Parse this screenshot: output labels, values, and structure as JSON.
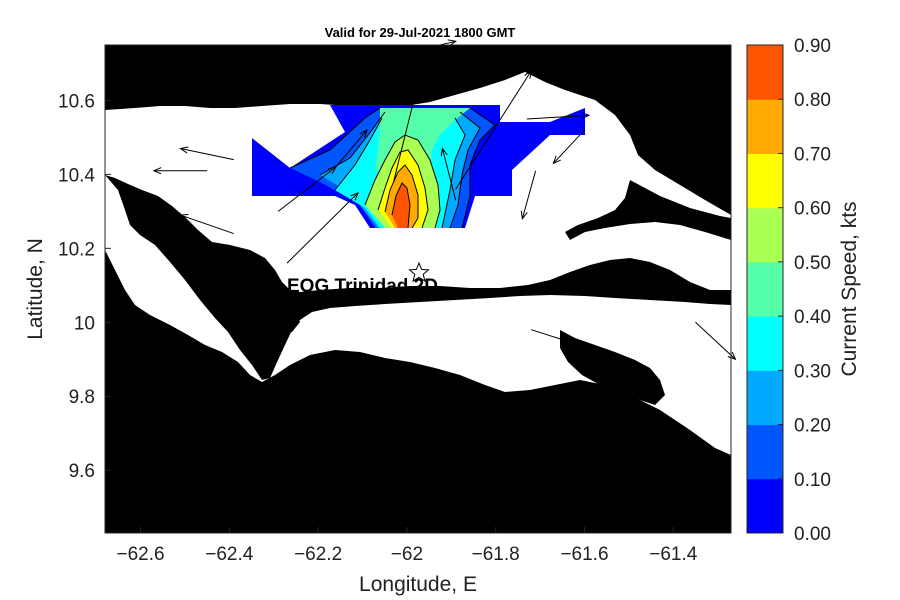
{
  "title": "Valid for 29-Jul-2021 1800 GMT",
  "site_label": "EOG Trinidad 2D",
  "x_axis": {
    "label": "Longitude, E",
    "ticks": [
      "−62.6",
      "−62.4",
      "−62.2",
      "−62",
      "−61.8",
      "−61.6",
      "−61.4"
    ],
    "tick_values": [
      -62.6,
      -62.4,
      -62.2,
      -62.0,
      -61.8,
      -61.6,
      -61.4
    ]
  },
  "y_axis": {
    "label": "Latitude, N",
    "ticks": [
      "10.6",
      "10.4",
      "10.2",
      "10",
      "9.8",
      "9.6"
    ],
    "tick_values": [
      10.6,
      10.4,
      10.2,
      10.0,
      9.8,
      9.6
    ]
  },
  "colorbar": {
    "label": "Current Speed, kts",
    "ticks": [
      "0.90",
      "0.80",
      "0.70",
      "0.60",
      "0.50",
      "0.40",
      "0.30",
      "0.20",
      "0.10",
      "0.00"
    ],
    "colors": [
      "#0000ff",
      "#0055ff",
      "#00aaff",
      "#00ffff",
      "#55ffaa",
      "#aaff55",
      "#ffff00",
      "#ffaa00",
      "#ff5500"
    ]
  },
  "colors": {
    "land": "#000000",
    "sea": "#ffffff",
    "arrow": "#000000"
  },
  "chart_data": {
    "type": "contour",
    "title": "Valid for 29-Jul-2021 1800 GMT",
    "xlabel": "Longitude, E",
    "ylabel": "Latitude, N",
    "xlim": [
      -62.68,
      -61.27
    ],
    "ylim": [
      9.43,
      10.75
    ],
    "colorbar_range": [
      0.0,
      0.9
    ],
    "site": {
      "label": "EOG Trinidad 2D",
      "lon": -61.97,
      "lat": 10.13
    },
    "contour_peak_speed_kts": 0.85,
    "vectors": [
      {
        "lon": -62.39,
        "lat": 10.44,
        "u": -0.12,
        "v": 0.03
      },
      {
        "lon": -62.45,
        "lat": 10.41,
        "u": -0.12,
        "v": 0.0
      },
      {
        "lon": -62.39,
        "lat": 10.24,
        "u": -0.12,
        "v": 0.05
      },
      {
        "lon": -62.16,
        "lat": 10.42,
        "u": 0.07,
        "v": 0.1
      },
      {
        "lon": -62.29,
        "lat": 10.3,
        "u": 0.13,
        "v": 0.12
      },
      {
        "lon": -62.27,
        "lat": 10.16,
        "u": 0.16,
        "v": 0.19
      },
      {
        "lon": -62.03,
        "lat": 10.38,
        "u": 0.06,
        "v": 0.29
      },
      {
        "lon": -62.07,
        "lat": 10.71,
        "u": 0.18,
        "v": 0.05
      },
      {
        "lon": -61.89,
        "lat": 10.36,
        "u": 0.17,
        "v": 0.32
      },
      {
        "lon": -61.89,
        "lat": 10.33,
        "u": -0.03,
        "v": 0.14
      },
      {
        "lon": -61.73,
        "lat": 10.55,
        "u": 0.14,
        "v": 0.01
      },
      {
        "lon": -61.6,
        "lat": 10.52,
        "u": -0.07,
        "v": -0.09
      },
      {
        "lon": -61.71,
        "lat": 10.41,
        "u": -0.03,
        "v": -0.13
      },
      {
        "lon": -61.72,
        "lat": 9.98,
        "u": 0.13,
        "v": -0.05
      },
      {
        "lon": -61.35,
        "lat": 10.0,
        "u": 0.09,
        "v": -0.1
      }
    ]
  }
}
